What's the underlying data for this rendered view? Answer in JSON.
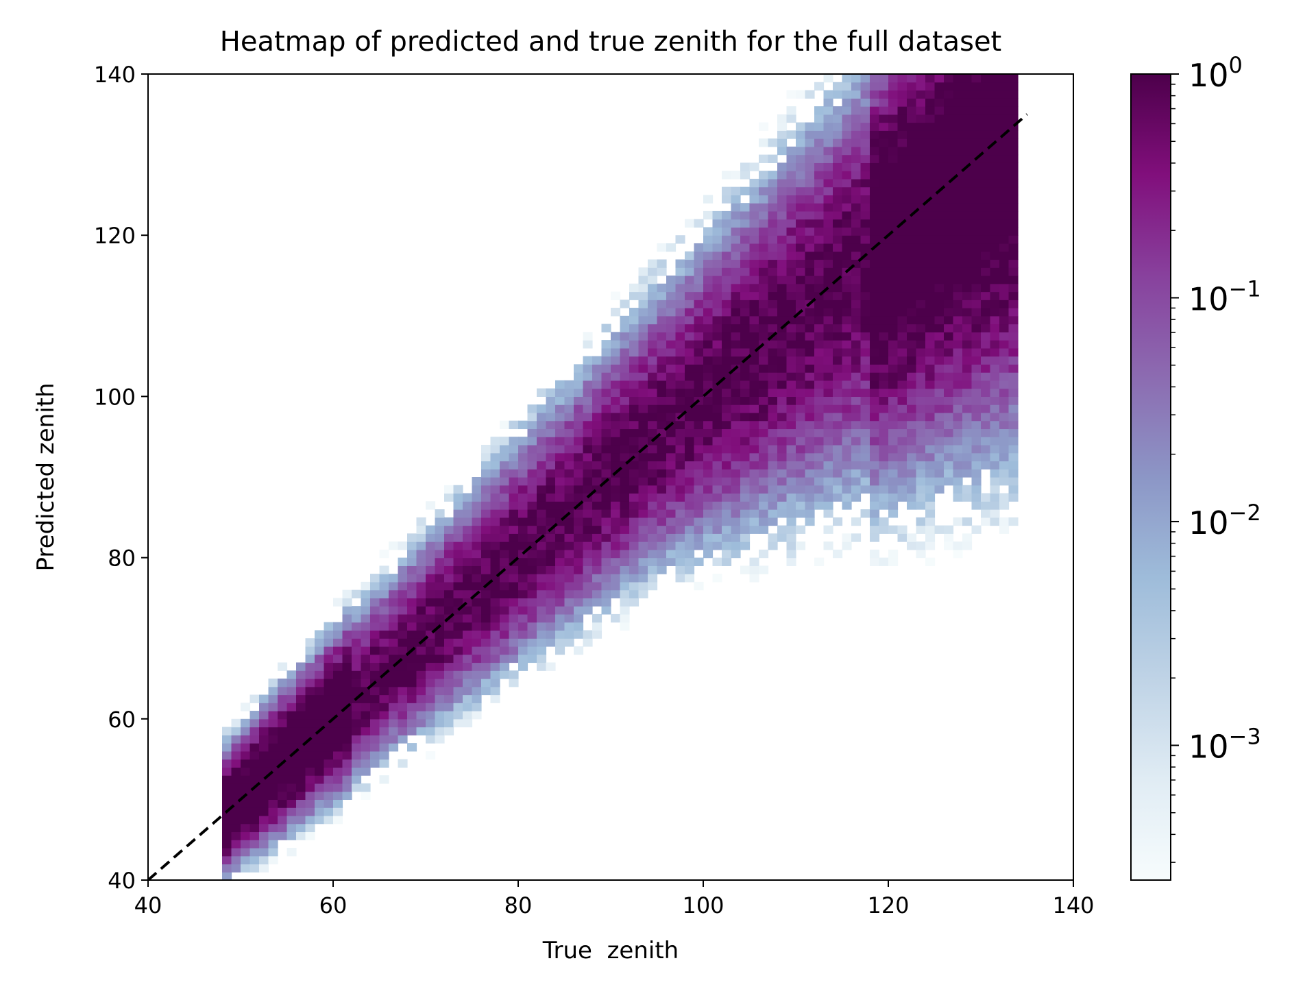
{
  "chart_data": {
    "type": "heatmap",
    "title": "Heatmap of predicted and true zenith for the full dataset",
    "xlabel": "True  zenith",
    "ylabel": "Predicted zenith",
    "xlim": [
      40,
      140
    ],
    "ylim": [
      40,
      140
    ],
    "xticks": [
      "40",
      "60",
      "80",
      "100",
      "120",
      "140"
    ],
    "yticks": [
      "40",
      "60",
      "80",
      "100",
      "120",
      "140"
    ],
    "grid": false,
    "bin_width": 1,
    "populated_range": [
      48,
      133
    ],
    "reference_line": {
      "style": "dashed",
      "color": "#000000",
      "from": [
        40,
        40
      ],
      "to": [
        135,
        135
      ]
    },
    "colorbar": {
      "scale": "log",
      "min": 0.00025,
      "max": 1,
      "tick_labels": [
        "10",
        "10",
        "10",
        "10"
      ],
      "tick_exponents": [
        "0",
        "−1",
        "−2",
        "−3"
      ],
      "tick_values": [
        1,
        0.1,
        0.01,
        0.001
      ],
      "colormap": "BuPu",
      "colors": [
        "#f7fcfd",
        "#e0ecf4",
        "#bfd3e6",
        "#9ebcda",
        "#8c96c6",
        "#8c6bb1",
        "#88419d",
        "#810f7c",
        "#4d004b"
      ]
    },
    "distribution": {
      "description_values": "normalized per true-zenith column",
      "spread_below_diagonal_increases_with_x": true
    }
  }
}
